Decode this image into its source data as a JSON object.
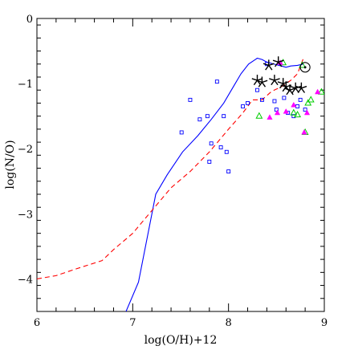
{
  "chart_data": {
    "type": "scatter",
    "title": "",
    "xlabel": "log(O/H)+12",
    "ylabel": "log(N/O)",
    "xlim": [
      6,
      9
    ],
    "ylim": [
      -4.5,
      0
    ],
    "xticks": [
      6,
      7,
      8,
      9
    ],
    "yticks": [
      0,
      -1,
      -2,
      -3,
      -4
    ],
    "xtick_labels": [
      "6",
      "7",
      "8",
      "9"
    ],
    "ytick_labels": [
      "0",
      "−1",
      "−2",
      "−3",
      "−4"
    ],
    "grid": false,
    "legend": null,
    "series": [
      {
        "kind": "line",
        "style": "solid",
        "color": "#0000ff",
        "x": [
          6.93,
          7.06,
          7.24,
          7.36,
          7.52,
          7.68,
          7.82,
          7.95,
          8.05,
          8.13,
          8.21,
          8.27,
          8.3,
          8.35,
          8.4,
          8.45,
          8.5,
          8.55,
          8.6,
          8.65,
          8.72,
          8.78
        ],
        "y": [
          -4.5,
          -4.05,
          -2.7,
          -2.4,
          -2.05,
          -1.8,
          -1.55,
          -1.3,
          -1.05,
          -0.85,
          -0.7,
          -0.64,
          -0.61,
          -0.63,
          -0.67,
          -0.69,
          -0.71,
          -0.73,
          -0.75,
          -0.73,
          -0.72,
          -0.7
        ]
      },
      {
        "kind": "line",
        "style": "dashed",
        "color": "#ff0000",
        "x": [
          6.0,
          6.2,
          6.4,
          6.55,
          6.68,
          6.8,
          7.0,
          7.2,
          7.4,
          7.6,
          7.8,
          8.0,
          8.15,
          8.25,
          8.35,
          8.45,
          8.55,
          8.65,
          8.72,
          8.78
        ],
        "y": [
          -4.0,
          -3.95,
          -3.85,
          -3.78,
          -3.72,
          -3.55,
          -3.3,
          -2.95,
          -2.6,
          -2.35,
          -2.05,
          -1.7,
          -1.45,
          -1.25,
          -1.25,
          -1.12,
          -1.05,
          -0.95,
          -0.85,
          -0.62
        ]
      },
      {
        "kind": "marker",
        "marker": "open-square",
        "color": "#0000ff",
        "x": [
          7.51,
          7.6,
          7.7,
          7.78,
          7.8,
          7.82,
          7.88,
          7.92,
          7.95,
          7.98,
          8.0,
          8.15,
          8.2,
          8.3,
          8.35,
          8.4,
          8.48,
          8.5,
          8.58,
          8.62,
          8.68,
          8.72,
          8.75,
          8.8
        ],
        "y": [
          -1.75,
          -1.25,
          -1.55,
          -1.5,
          -2.2,
          -1.92,
          -0.97,
          -1.98,
          -1.5,
          -2.05,
          -2.35,
          -1.35,
          -1.3,
          -1.1,
          -1.25,
          -0.7,
          -1.27,
          -1.4,
          -1.22,
          -1.45,
          -1.5,
          -1.35,
          -1.25,
          -1.4
        ]
      },
      {
        "kind": "marker",
        "marker": "open-triangle",
        "color": "#00cc00",
        "x": [
          8.32,
          8.57,
          8.68,
          8.72,
          8.77,
          8.8,
          8.83,
          8.86,
          8.97
        ],
        "y": [
          -1.5,
          -0.68,
          -1.45,
          -1.48,
          -0.72,
          -1.75,
          -1.3,
          -1.25,
          -1.13
        ]
      },
      {
        "kind": "marker",
        "marker": "filled-triangle",
        "color": "#ff00ff",
        "x": [
          8.43,
          8.51,
          8.54,
          8.6,
          8.68,
          8.79,
          8.82,
          8.93
        ],
        "y": [
          -1.52,
          -1.45,
          -0.68,
          -1.43,
          -1.33,
          -1.75,
          -1.45,
          -1.13
        ]
      },
      {
        "kind": "marker",
        "marker": "star",
        "color": "#000000",
        "x": [
          8.3,
          8.35,
          8.42,
          8.48,
          8.52,
          8.57,
          8.6,
          8.64,
          8.7,
          8.76
        ],
        "y": [
          -0.95,
          -0.98,
          -0.72,
          -0.95,
          -0.67,
          -1.0,
          -1.05,
          -1.1,
          -1.07,
          -1.07
        ]
      },
      {
        "kind": "marker",
        "marker": "sun-symbol",
        "color": "#000000",
        "x": [
          8.8
        ],
        "y": [
          -0.75
        ]
      }
    ]
  }
}
